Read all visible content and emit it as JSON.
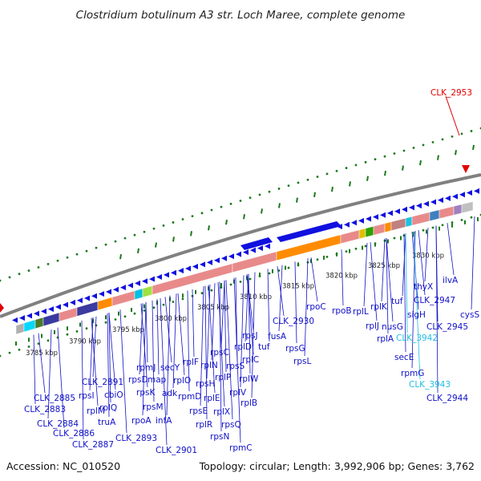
{
  "title": "Clostridium botulinum A3 str. Loch Maree, complete genome",
  "footer": {
    "accession": "Accession: NC_010520",
    "topology": "Topology: circular; Length: 3,992,906 bp; Genes: 3,762"
  },
  "colors": {
    "gene_blue": "#1010e0",
    "rrna_pink": "#e98a8a",
    "orange": "#ff8c00",
    "highlight_red": "#e00000",
    "highlight_cyan": "#22bde0",
    "tick_green": "#1a7a1a",
    "label_blue": "#1010c8"
  },
  "scale_labels": [
    "3785 kbp",
    "3790 kbp",
    "3795 kbp",
    "3800 kbp",
    "3805 kbp",
    "3810 kbp",
    "3815 kbp",
    "3820 kbp",
    "3825 kbp",
    "3830 kbp"
  ],
  "top_gene": "CLK_2953",
  "gene_labels": [
    "CLK_2885",
    "CLK_2883",
    "CLK_2884",
    "CLK_2886",
    "CLK_2887",
    "rpsI",
    "rplM",
    "truA",
    "CLK_2891",
    "cbiO",
    "rplQ",
    "rpoA",
    "CLK_2893",
    "rpmJ",
    "rpsD",
    "rpsK",
    "rpsM",
    "infA",
    "secY",
    "map",
    "adk",
    "rplO",
    "rpmD",
    "rpsE",
    "CLK_2901",
    "rplF",
    "rpsH",
    "rplE",
    "rplR",
    "rplN",
    "rplX",
    "rpsN",
    "rpsC",
    "rpsQ",
    "rplP",
    "rplV",
    "rpmC",
    "rpsS",
    "rplD",
    "rplC",
    "rplW",
    "rplB",
    "rpsJ",
    "tuf",
    "fusA",
    "CLK_2930",
    "rpsG",
    "rpsL",
    "rpoC",
    "rpoB",
    "rplL",
    "rplJ",
    "rplA",
    "rplK",
    "nusG",
    "secE",
    "tuf",
    "sigH",
    "CLK_3942",
    "rpmG",
    "CLK_3943",
    "CLK_2944",
    "thyX",
    "CLK_2947",
    "CLK_2945",
    "cysS",
    "ilvA"
  ]
}
